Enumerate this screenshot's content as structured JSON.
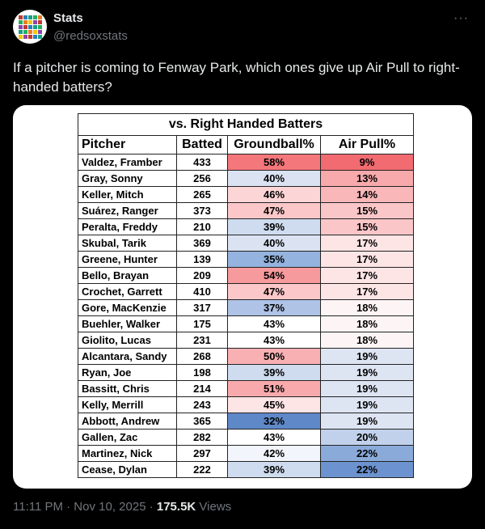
{
  "account": {
    "name": "Stats",
    "handle": "@redsoxstats",
    "more_icon": "more-horizontal-icon",
    "avatar_colors": [
      "#c0392b",
      "#f1c40f",
      "#27ae60",
      "#2980b9",
      "#8e44ad",
      "#e67e22",
      "#16a085"
    ]
  },
  "tweet": {
    "text": "If a pitcher is coming to Fenway Park, which ones give up Air Pull to right-handed batters?"
  },
  "table": {
    "title": "vs. Right Handed Batters",
    "headers": [
      "Pitcher",
      "Batted",
      "Groundball%",
      "Air Pull%"
    ],
    "rows": [
      {
        "pitcher": "Valdez, Framber",
        "batted": "433",
        "gb": "58%",
        "ap": "9%",
        "gb_color": "#f4777c",
        "ap_color": "#f16b70"
      },
      {
        "pitcher": "Gray, Sonny",
        "batted": "256",
        "gb": "40%",
        "ap": "13%",
        "gb_color": "#dbe3f2",
        "ap_color": "#f7a9ac"
      },
      {
        "pitcher": "Keller, Mitch",
        "batted": "265",
        "gb": "46%",
        "ap": "14%",
        "gb_color": "#fcd5d7",
        "ap_color": "#f9b7ba"
      },
      {
        "pitcher": "Suárez, Ranger",
        "batted": "373",
        "gb": "47%",
        "ap": "15%",
        "gb_color": "#fbc7c9",
        "ap_color": "#fbc6c8"
      },
      {
        "pitcher": "Peralta, Freddy",
        "batted": "210",
        "gb": "39%",
        "ap": "15%",
        "gb_color": "#cfdcef",
        "ap_color": "#fbc6c8"
      },
      {
        "pitcher": "Skubal, Tarik",
        "batted": "369",
        "gb": "40%",
        "ap": "17%",
        "gb_color": "#dbe3f2",
        "ap_color": "#fde5e6"
      },
      {
        "pitcher": "Greene, Hunter",
        "batted": "139",
        "gb": "35%",
        "ap": "17%",
        "gb_color": "#94b3de",
        "ap_color": "#fde5e6"
      },
      {
        "pitcher": "Bello, Brayan",
        "batted": "209",
        "gb": "54%",
        "ap": "17%",
        "gb_color": "#f79a9e",
        "ap_color": "#fde5e6"
      },
      {
        "pitcher": "Crochet, Garrett",
        "batted": "410",
        "gb": "47%",
        "ap": "17%",
        "gb_color": "#fbc7c9",
        "ap_color": "#fde5e6"
      },
      {
        "pitcher": "Gore, MacKenzie",
        "batted": "317",
        "gb": "37%",
        "ap": "18%",
        "gb_color": "#aec3e5",
        "ap_color": "#fdf4f5"
      },
      {
        "pitcher": "Buehler, Walker",
        "batted": "175",
        "gb": "43%",
        "ap": "18%",
        "gb_color": "#ffffff",
        "ap_color": "#fdf4f5"
      },
      {
        "pitcher": "Giolito, Lucas",
        "batted": "231",
        "gb": "43%",
        "ap": "18%",
        "gb_color": "#ffffff",
        "ap_color": "#fdf4f5"
      },
      {
        "pitcher": "Alcantara, Sandy",
        "batted": "268",
        "gb": "50%",
        "ap": "19%",
        "gb_color": "#f9b0b3",
        "ap_color": "#dde5f3"
      },
      {
        "pitcher": "Ryan, Joe",
        "batted": "198",
        "gb": "39%",
        "ap": "19%",
        "gb_color": "#cfdcef",
        "ap_color": "#dde5f3"
      },
      {
        "pitcher": "Bassitt, Chris",
        "batted": "214",
        "gb": "51%",
        "ap": "19%",
        "gb_color": "#f8a9ac",
        "ap_color": "#dde5f3"
      },
      {
        "pitcher": "Kelly, Merrill",
        "batted": "243",
        "gb": "45%",
        "ap": "19%",
        "gb_color": "#fde4e5",
        "ap_color": "#dde5f3"
      },
      {
        "pitcher": "Abbott, Andrew",
        "batted": "365",
        "gb": "32%",
        "ap": "19%",
        "gb_color": "#5f88c8",
        "ap_color": "#dde5f3"
      },
      {
        "pitcher": "Gallen, Zac",
        "batted": "282",
        "gb": "43%",
        "ap": "20%",
        "gb_color": "#ffffff",
        "ap_color": "#c2d1eb"
      },
      {
        "pitcher": "Martinez, Nick",
        "batted": "297",
        "gb": "42%",
        "ap": "22%",
        "gb_color": "#f2f5fb",
        "ap_color": "#8aaad9"
      },
      {
        "pitcher": "Cease, Dylan",
        "batted": "222",
        "gb": "39%",
        "ap": "22%",
        "gb_color": "#cfdcef",
        "ap_color": "#6c93cf"
      }
    ]
  },
  "meta": {
    "time": "11:11 PM · Nov 10, 2025 · ",
    "views_count": "175.5K",
    "views_label": " Views"
  }
}
